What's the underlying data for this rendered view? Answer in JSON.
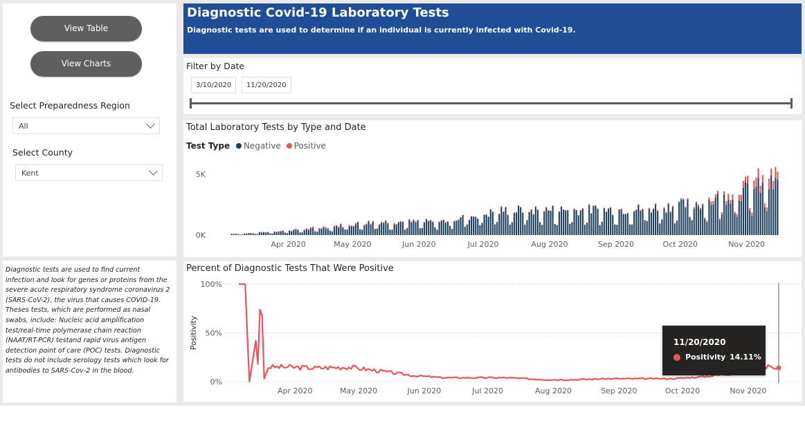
{
  "nav": {
    "view_table": "View Table",
    "view_charts": "View Charts"
  },
  "filters": {
    "region_title": "Select Preparedness Region",
    "region_value": "All",
    "county_title": "Select County",
    "county_value": "Kent"
  },
  "header": {
    "title": "Diagnostic Covid-19 Laboratory Tests",
    "subtitle": "Diagnostic tests are used to determine if an individual is currently infected with Covid-19."
  },
  "date_filter": {
    "title": "Filter by Date",
    "start": "3/10/2020",
    "end": "11/20/2020",
    "range_fraction": [
      0,
      1
    ]
  },
  "info_text": "Diagnostic tests are used to find current infection and look for genes or proteins from the severe acute respiratory syndrome coronavirus 2 (SARS-CoV-2), the virus that causes COVID-19. Theses tests, which are performed as nasal swabs, include: Nucleic acid amplification test/real-time polymerase chain reaction (NAAT/RT-PCR) testand rapid virus antigen detection point of care (POC) tests.  Diagnostic tests do not include serology tests which look for antibodies to SARS-Cov-2 in the blood.",
  "colors": {
    "negative": "#1b3f5e",
    "positive": "#e8545a",
    "header_bg": "#1f4e96",
    "button_bg": "#5f5f5f"
  },
  "tooltip": {
    "date": "11/20/2020",
    "label": "Positivity",
    "value": "14.11%"
  },
  "chart_data": [
    {
      "type": "bar",
      "title": "Total Laboratory Tests by Type and Date",
      "legend_title": "Test Type",
      "legend_placement": "top-left",
      "stacked": true,
      "x_start": "2020-03-10",
      "x_end": "2020-11-20",
      "x_ticks": [
        "Apr 2020",
        "May 2020",
        "Jun 2020",
        "Jul 2020",
        "Aug 2020",
        "Sep 2020",
        "Oct 2020",
        "Nov 2020"
      ],
      "y_ticks": [
        "0K",
        "5K"
      ],
      "ylim": [
        0,
        6000
      ],
      "series": [
        {
          "name": "Negative",
          "color": "#1b3f5e",
          "monthly_mean_estimate": [
            {
              "month": "2020-03",
              "value": 100
            },
            {
              "month": "2020-04",
              "value": 450
            },
            {
              "month": "2020-05",
              "value": 1000
            },
            {
              "month": "2020-06",
              "value": 1050
            },
            {
              "month": "2020-07",
              "value": 1950
            },
            {
              "month": "2020-08",
              "value": 2000
            },
            {
              "month": "2020-09",
              "value": 2050
            },
            {
              "month": "2020-10",
              "value": 2500
            },
            {
              "month": "2020-11",
              "value": 4000
            }
          ]
        },
        {
          "name": "Positive",
          "color": "#e8545a",
          "monthly_mean_estimate": [
            {
              "month": "2020-03",
              "value": 10
            },
            {
              "month": "2020-04",
              "value": 70
            },
            {
              "month": "2020-05",
              "value": 90
            },
            {
              "month": "2020-06",
              "value": 40
            },
            {
              "month": "2020-07",
              "value": 50
            },
            {
              "month": "2020-08",
              "value": 40
            },
            {
              "month": "2020-09",
              "value": 50
            },
            {
              "month": "2020-10",
              "value": 120
            },
            {
              "month": "2020-11",
              "value": 700
            }
          ]
        }
      ]
    },
    {
      "type": "line",
      "title": "Percent of Diagnostic Tests That Were Positive",
      "ylabel": "Positivity",
      "y_ticks": [
        "0%",
        "50%",
        "100%"
      ],
      "ylim": [
        0,
        100
      ],
      "x_ticks": [
        "Apr 2020",
        "May 2020",
        "Jun 2020",
        "Jul 2020",
        "Aug 2020",
        "Sep 2020",
        "Oct 2020",
        "Nov 2020"
      ],
      "series": [
        {
          "name": "Positivity",
          "color": "#e8545a",
          "points": [
            {
              "x": "2020-03-10",
              "y": 100
            },
            {
              "x": "2020-03-13",
              "y": 100
            },
            {
              "x": "2020-03-15",
              "y": 0
            },
            {
              "x": "2020-03-18",
              "y": 42
            },
            {
              "x": "2020-03-19",
              "y": 18
            },
            {
              "x": "2020-03-20",
              "y": 74
            },
            {
              "x": "2020-03-21",
              "y": 68
            },
            {
              "x": "2020-03-22",
              "y": 3
            },
            {
              "x": "2020-03-24",
              "y": 15
            },
            {
              "x": "2020-04-01",
              "y": 15
            },
            {
              "x": "2020-04-15",
              "y": 14
            },
            {
              "x": "2020-05-01",
              "y": 15
            },
            {
              "x": "2020-05-15",
              "y": 11
            },
            {
              "x": "2020-06-01",
              "y": 6
            },
            {
              "x": "2020-06-15",
              "y": 4
            },
            {
              "x": "2020-07-01",
              "y": 4
            },
            {
              "x": "2020-07-15",
              "y": 4
            },
            {
              "x": "2020-08-01",
              "y": 2
            },
            {
              "x": "2020-08-15",
              "y": 2
            },
            {
              "x": "2020-09-01",
              "y": 3
            },
            {
              "x": "2020-09-15",
              "y": 3
            },
            {
              "x": "2020-10-01",
              "y": 3
            },
            {
              "x": "2020-10-15",
              "y": 5
            },
            {
              "x": "2020-11-01",
              "y": 9
            },
            {
              "x": "2020-11-10",
              "y": 12
            },
            {
              "x": "2020-11-15",
              "y": 17
            },
            {
              "x": "2020-11-18",
              "y": 13
            },
            {
              "x": "2020-11-20",
              "y": 14.11
            }
          ]
        }
      ]
    }
  ]
}
